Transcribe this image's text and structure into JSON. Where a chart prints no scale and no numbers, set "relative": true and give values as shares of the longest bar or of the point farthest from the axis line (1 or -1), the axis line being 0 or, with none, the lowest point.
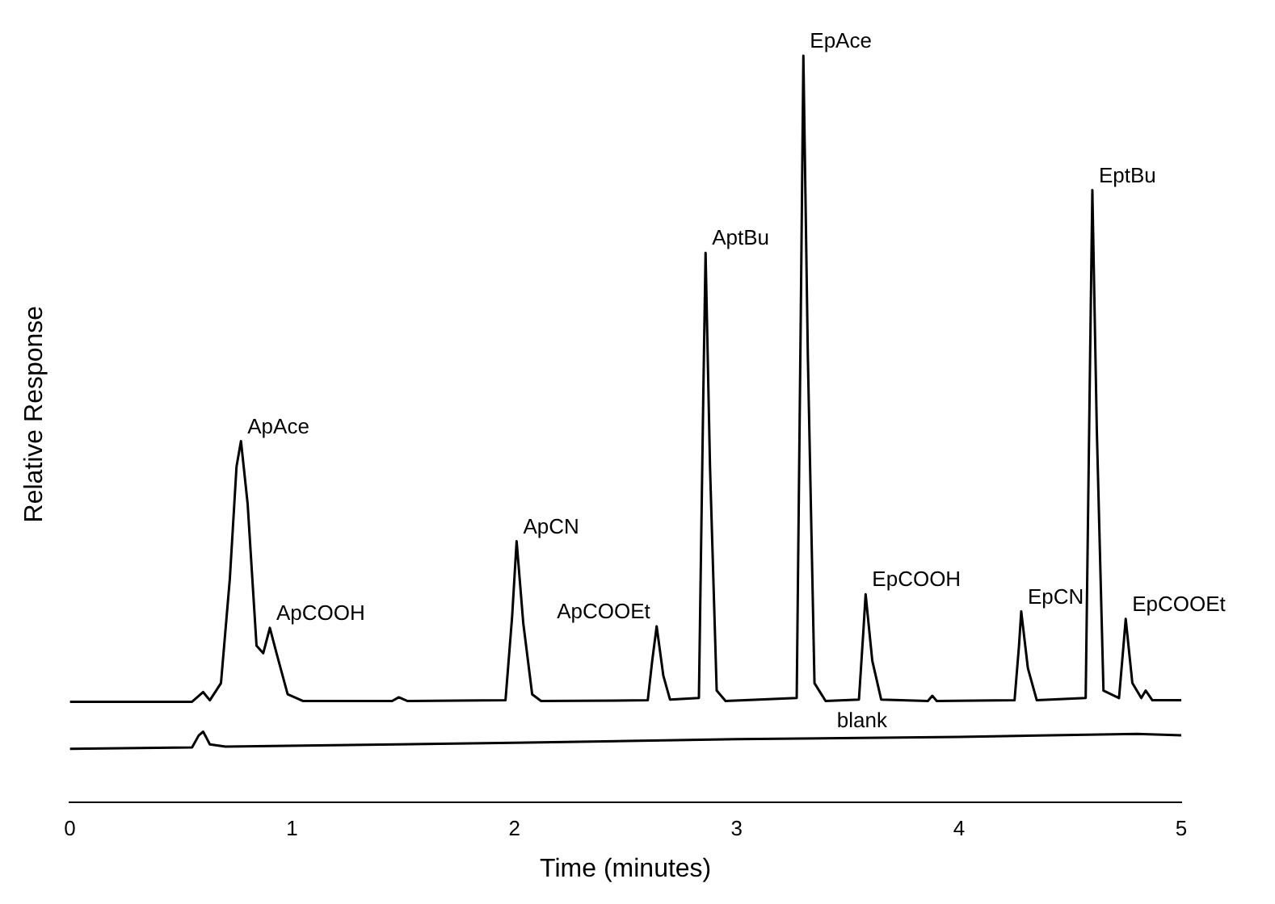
{
  "chart_data": {
    "type": "line",
    "relative": true,
    "xlabel": "Time (minutes)",
    "ylabel": "Relative Response",
    "xlim": [
      0,
      5
    ],
    "xticks": [
      0,
      1,
      2,
      3,
      4,
      5
    ],
    "grid": false,
    "legend": false,
    "marker": "none",
    "line_style": "solid",
    "series": [
      {
        "color": "#000000",
        "x": [
          0,
          0.55,
          0.6,
          0.63,
          0.68,
          0.72,
          0.75,
          0.77,
          0.8,
          0.84,
          0.87,
          0.9,
          0.93,
          0.98,
          1.05,
          1.45,
          1.48,
          1.52,
          1.96,
          1.99,
          2.01,
          2.04,
          2.08,
          2.12,
          2.6,
          2.62,
          2.64,
          2.67,
          2.7,
          2.83,
          2.85,
          2.86,
          2.88,
          2.91,
          2.95,
          3.27,
          3.29,
          3.3,
          3.32,
          3.35,
          3.4,
          3.55,
          3.57,
          3.58,
          3.61,
          3.65,
          3.86,
          3.88,
          3.9,
          4.25,
          4.27,
          4.28,
          4.31,
          4.35,
          4.57,
          4.59,
          4.6,
          4.62,
          4.65,
          4.72,
          4.74,
          4.75,
          4.78,
          4.82,
          4.84,
          4.87,
          5
        ],
        "values": [
          0.135,
          0.135,
          0.148,
          0.137,
          0.16,
          0.3,
          0.45,
          0.484,
          0.4,
          0.21,
          0.2,
          0.234,
          0.2,
          0.145,
          0.136,
          0.136,
          0.141,
          0.136,
          0.137,
          0.25,
          0.35,
          0.24,
          0.145,
          0.136,
          0.137,
          0.19,
          0.236,
          0.17,
          0.138,
          0.14,
          0.55,
          0.736,
          0.45,
          0.15,
          0.136,
          0.14,
          0.7,
          1,
          0.6,
          0.16,
          0.136,
          0.138,
          0.23,
          0.279,
          0.19,
          0.138,
          0.136,
          0.143,
          0.136,
          0.137,
          0.21,
          0.256,
          0.18,
          0.137,
          0.14,
          0.6,
          0.82,
          0.5,
          0.15,
          0.14,
          0.21,
          0.246,
          0.16,
          0.14,
          0.15,
          0.137,
          0.137
        ]
      },
      {
        "name": "blank",
        "color": "#000000",
        "x": [
          0,
          0.55,
          0.58,
          0.6,
          0.63,
          0.7,
          2,
          3,
          4,
          4.8,
          5
        ],
        "values": [
          0.072,
          0.074,
          0.09,
          0.095,
          0.078,
          0.075,
          0.08,
          0.085,
          0.088,
          0.092,
          0.09
        ]
      }
    ],
    "annotations": [
      {
        "text": "ApAce",
        "x": 0.77,
        "y": 0.484
      },
      {
        "text": "ApCOOH",
        "x": 0.9,
        "y": 0.234
      },
      {
        "text": "ApCN",
        "x": 2.01,
        "y": 0.35
      },
      {
        "text": "ApCOOEt",
        "x": 2.64,
        "y": 0.236
      },
      {
        "text": "AptBu",
        "x": 2.86,
        "y": 0.736
      },
      {
        "text": "EpAce",
        "x": 3.3,
        "y": 1
      },
      {
        "text": "EpCOOH",
        "x": 3.58,
        "y": 0.279
      },
      {
        "text": "EpCN",
        "x": 4.28,
        "y": 0.256
      },
      {
        "text": "EptBu",
        "x": 4.6,
        "y": 0.82
      },
      {
        "text": "EpCOOEt",
        "x": 4.75,
        "y": 0.246
      }
    ]
  }
}
